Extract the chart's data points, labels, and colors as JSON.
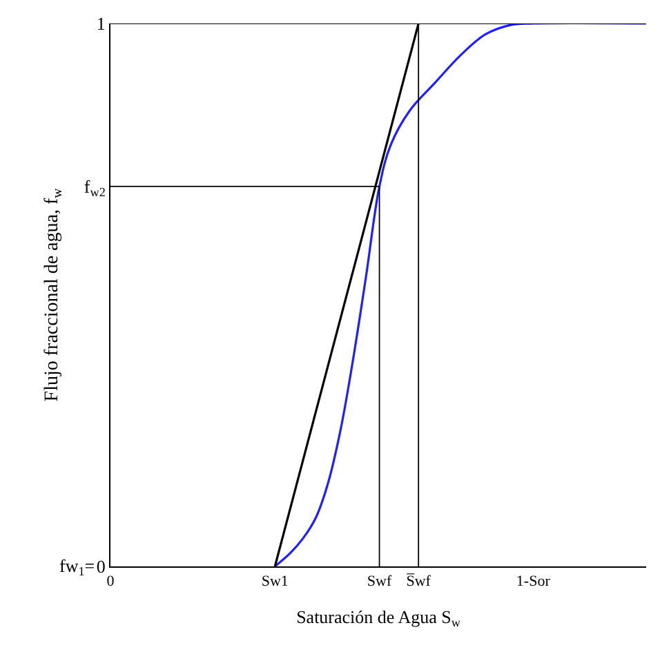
{
  "chart_data": {
    "type": "line",
    "xlabel": "Saturación de Agua S$_{w}$",
    "ylabel": "Flujo fraccional de agua, f$_{w}$",
    "xlim": [
      0,
      1
    ],
    "ylim": [
      0,
      1
    ],
    "annotations": [
      "fw$_{1}$="
    ],
    "yticks": [
      0,
      {
        "value": 0.7,
        "label": "f$_{w2}$"
      },
      1
    ],
    "xticks": [
      {
        "value": 0,
        "label": "0"
      },
      {
        "value": 0.307,
        "label": "Sw1"
      },
      {
        "value": 0.502,
        "label": "Swf"
      },
      {
        "value": 0.575,
        "label": "S̅wf"
      },
      {
        "value": 0.789,
        "label": "1-Sor"
      }
    ],
    "marker": "none",
    "line_style": "solid",
    "series": [
      {
        "color": "#1f1fff",
        "x": [
          0.307,
          0.336,
          0.359,
          0.383,
          0.406,
          0.43,
          0.453,
          0.477,
          0.502,
          0.523,
          0.559,
          0.606,
          0.653,
          0.7,
          0.746,
          0.789,
          1.0
        ],
        "values": [
          0,
          0.025,
          0.051,
          0.089,
          0.153,
          0.254,
          0.382,
          0.534,
          0.7,
          0.776,
          0.84,
          0.891,
          0.941,
          0.98,
          0.997,
          1.0,
          1.0
        ]
      },
      {
        "color": "#000000",
        "x": [
          0.307,
          0.575
        ],
        "values": [
          0,
          1
        ]
      },
      {
        "color": "#000000",
        "x": [
          0,
          0.502
        ],
        "values": [
          0.7,
          0.7
        ]
      },
      {
        "color": "#000000",
        "x": [
          0.502,
          0.502
        ],
        "values": [
          0,
          0.7
        ]
      },
      {
        "color": "#000000",
        "x": [
          0.575,
          0.575
        ],
        "values": [
          0,
          1
        ]
      },
      {
        "color": "#000000",
        "x": [
          0,
          1
        ],
        "values": [
          1,
          1
        ]
      }
    ]
  }
}
